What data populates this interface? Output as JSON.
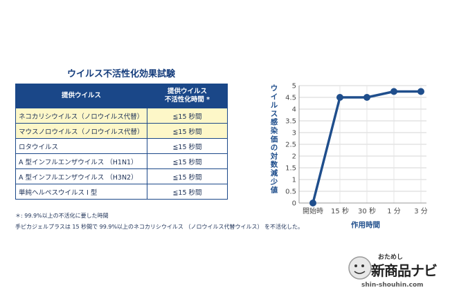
{
  "table": {
    "title": "ウイルス不活性化効果試験",
    "headers": [
      "提供ウイルス",
      "提供ウイルス\n不活性化時間 *"
    ],
    "rows": [
      {
        "name": "ネコカリシウイルス（ノロウイルス代替）",
        "time": "≦15 秒間",
        "highlight": true
      },
      {
        "name": "マウスノロウイルス（ノロウイルス代替）",
        "time": "≦15 秒間",
        "highlight": true
      },
      {
        "name": "ロタウイルス",
        "time": "≦15 秒間",
        "highlight": false
      },
      {
        "name": "A 型インフルエンザウイルス （H1N1）",
        "time": "≦15 秒間",
        "highlight": false
      },
      {
        "name": "A 型インフルエンザウイルス （H3N2）",
        "time": "≦15 秒間",
        "highlight": false
      },
      {
        "name": "単純ヘルペスウイルス I 型",
        "time": "≦15 秒間",
        "highlight": false
      }
    ],
    "highlight_color": "#fdf7c8",
    "header_color": "#1a4788"
  },
  "notes": {
    "line1": "＊: 99.9%以上の不活化に要した時間",
    "line2": "手ピカジェルプラスは 15 秒間で 99.9%以上のネコカリシウイルス （ノロウイルス代替ウイルス） を不活化した。"
  },
  "chart_data": {
    "type": "line",
    "categories": [
      "開始時",
      "15 秒",
      "30 秒",
      "1 分",
      "3 分"
    ],
    "series": [
      {
        "values": [
          0,
          4.5,
          4.5,
          4.75,
          4.75
        ]
      }
    ],
    "ylim": [
      0,
      5
    ],
    "yticks": [
      "0",
      "0.5",
      "1",
      "1.5",
      "2",
      "2.5",
      "3",
      "3.5",
      "4",
      "4.5",
      "5"
    ],
    "ylabel": "ウイルス感染価の対数減少値",
    "xlabel": "作用時間",
    "grid": true,
    "line_color": "#1f4e8c"
  },
  "watermark": {
    "small": "おためし",
    "big": "新商品ナビ",
    "url": "shin-shouhin.com"
  }
}
